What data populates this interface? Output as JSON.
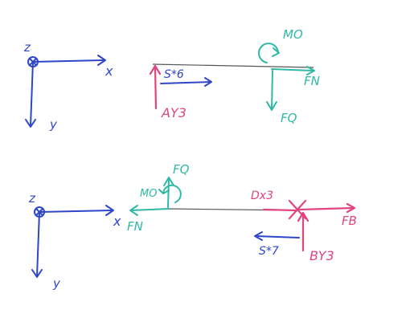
{
  "colors": {
    "blue": "#2f46c8",
    "teal": "#2fb8a6",
    "pink": "#e0457f",
    "beam": "#555555"
  },
  "top_diagram": {
    "axis_z": "z",
    "axis_x": "x",
    "axis_y": "y",
    "support_reaction": "AY3",
    "moment": "MO",
    "normal_force": "FN",
    "shear_force": "FQ",
    "distributed_label": "S*6"
  },
  "bottom_diagram": {
    "axis_z": "z",
    "axis_x": "x",
    "axis_y": "y",
    "moment": "MO",
    "normal_force": "FN",
    "shear_force": "FQ",
    "point_label": "Dx3",
    "force_b": "FB",
    "support_reaction": "BY3",
    "distributed_label": "S*7"
  }
}
